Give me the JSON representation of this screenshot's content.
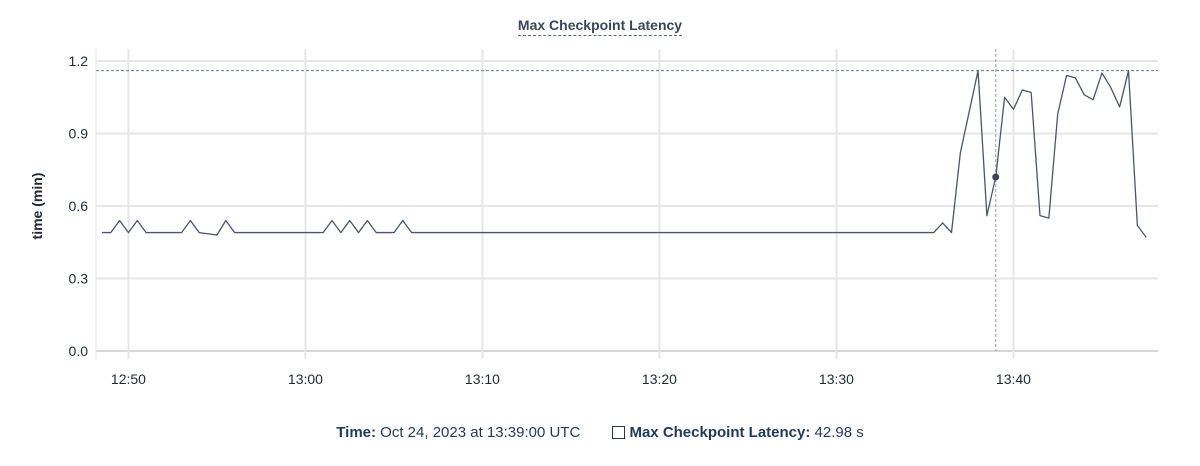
{
  "chart_data": {
    "type": "line",
    "title": "Max Checkpoint Latency",
    "ylabel": "time (min)",
    "xlabel": "",
    "ylim": [
      0,
      1.2
    ],
    "yticks": [
      "0.0",
      "0.3",
      "0.6",
      "0.9",
      "1.2"
    ],
    "xticks": [
      "12:50",
      "13:00",
      "13:10",
      "13:20",
      "13:30",
      "13:40"
    ],
    "xlim": [
      "12:48:10",
      "13:48:10"
    ],
    "grid": true,
    "line_color": "#4a5568",
    "max_reference_line": 1.16,
    "series": [
      {
        "name": "Max Checkpoint Latency",
        "points": [
          [
            "12:48:30",
            0.49
          ],
          [
            "12:49:00",
            0.49
          ],
          [
            "12:49:30",
            0.54
          ],
          [
            "12:50:00",
            0.49
          ],
          [
            "12:50:30",
            0.54
          ],
          [
            "12:51:00",
            0.49
          ],
          [
            "12:53:00",
            0.49
          ],
          [
            "12:53:30",
            0.54
          ],
          [
            "12:54:00",
            0.49
          ],
          [
            "12:55:00",
            0.48
          ],
          [
            "12:55:30",
            0.54
          ],
          [
            "12:56:00",
            0.49
          ],
          [
            "13:01:00",
            0.49
          ],
          [
            "13:01:30",
            0.54
          ],
          [
            "13:02:00",
            0.49
          ],
          [
            "13:02:30",
            0.54
          ],
          [
            "13:03:00",
            0.49
          ],
          [
            "13:03:30",
            0.54
          ],
          [
            "13:04:00",
            0.49
          ],
          [
            "13:05:00",
            0.49
          ],
          [
            "13:05:30",
            0.54
          ],
          [
            "13:06:00",
            0.49
          ],
          [
            "13:35:30",
            0.49
          ],
          [
            "13:36:00",
            0.53
          ],
          [
            "13:36:30",
            0.49
          ],
          [
            "13:37:00",
            0.82
          ],
          [
            "13:38:00",
            1.16
          ],
          [
            "13:38:30",
            0.56
          ],
          [
            "13:39:00",
            0.72
          ],
          [
            "13:39:30",
            1.05
          ],
          [
            "13:40:00",
            1.0
          ],
          [
            "13:40:30",
            1.08
          ],
          [
            "13:41:00",
            1.07
          ],
          [
            "13:41:30",
            0.56
          ],
          [
            "13:42:00",
            0.55
          ],
          [
            "13:42:30",
            0.98
          ],
          [
            "13:43:00",
            1.14
          ],
          [
            "13:43:30",
            1.13
          ],
          [
            "13:44:00",
            1.06
          ],
          [
            "13:44:30",
            1.04
          ],
          [
            "13:45:00",
            1.15
          ],
          [
            "13:45:30",
            1.09
          ],
          [
            "13:46:00",
            1.01
          ],
          [
            "13:46:30",
            1.16
          ],
          [
            "13:47:00",
            0.52
          ],
          [
            "13:47:30",
            0.47
          ]
        ]
      }
    ],
    "hover": {
      "time": "13:39:00",
      "value": 0.72
    }
  },
  "tooltip": {
    "time_label": "Time:",
    "time_value": "Oct 24, 2023 at 13:39:00 UTC",
    "series_label": "Max Checkpoint Latency:",
    "series_value": "42.98 s"
  }
}
